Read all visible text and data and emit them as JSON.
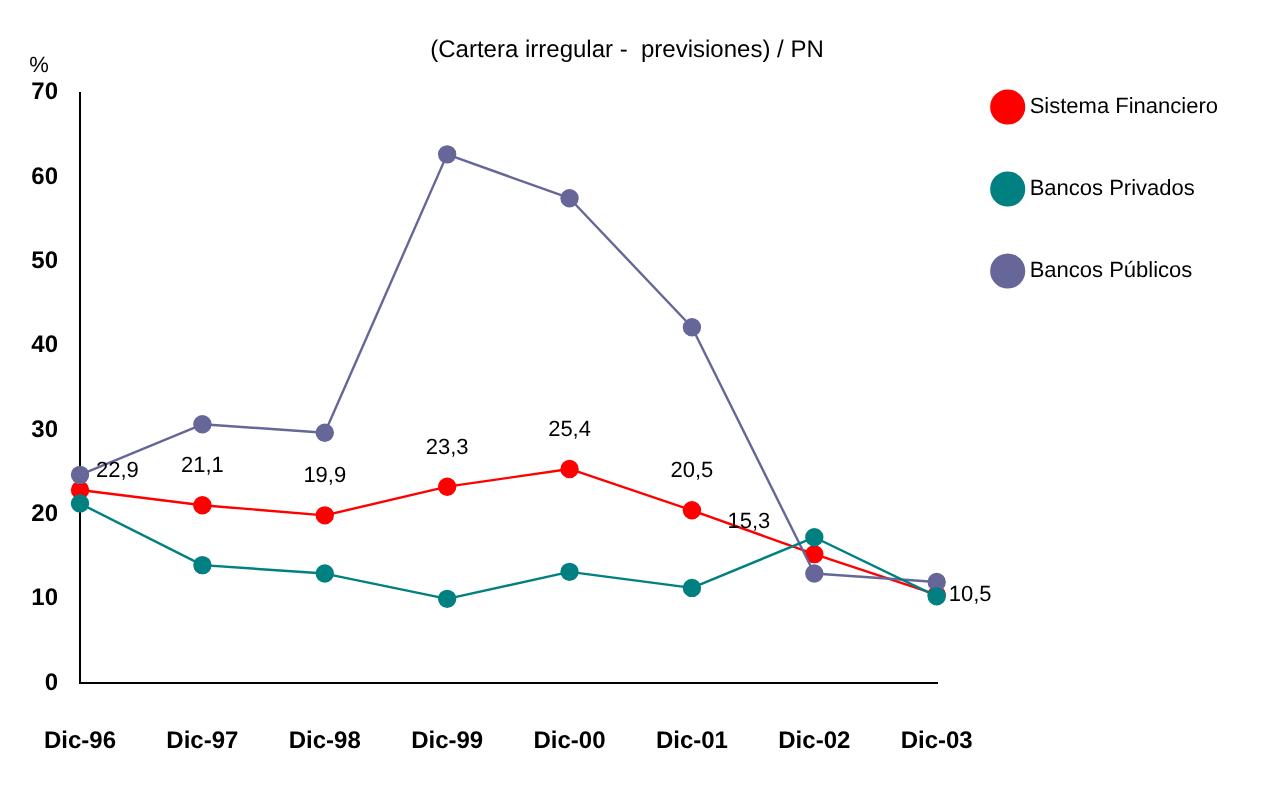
{
  "chart_data": {
    "type": "line",
    "title": "(Cartera irregular -  previsiones) / PN",
    "ylabel": "%",
    "categories": [
      "Dic-96",
      "Dic-97",
      "Dic-98",
      "Dic-99",
      "Dic-00",
      "Dic-01",
      "Dic-02",
      "Dic-03"
    ],
    "series": [
      {
        "name": "Sistema Financiero",
        "color": "#ff0000",
        "values": [
          22.9,
          21.1,
          19.9,
          23.3,
          25.4,
          20.5,
          15.3,
          10.5
        ],
        "value_labels": [
          "22,9",
          "21,1",
          "19,9",
          "23,3",
          "25,4",
          "20,5",
          "15,3",
          "10,5"
        ]
      },
      {
        "name": "Bancos Privados",
        "color": "#008080",
        "values": [
          21.3,
          14.0,
          13.0,
          10.0,
          13.2,
          11.3,
          17.3,
          10.3
        ]
      },
      {
        "name": "Bancos Públicos",
        "color": "#666699",
        "values": [
          24.7,
          30.7,
          29.7,
          62.7,
          57.5,
          42.2,
          13.0,
          12.0
        ]
      }
    ],
    "ylim": [
      0,
      70
    ],
    "yticks": [
      0,
      10,
      20,
      30,
      40,
      50,
      60,
      70
    ],
    "grid": false,
    "legend": "right",
    "marker": "circle",
    "line_style": "solid"
  }
}
